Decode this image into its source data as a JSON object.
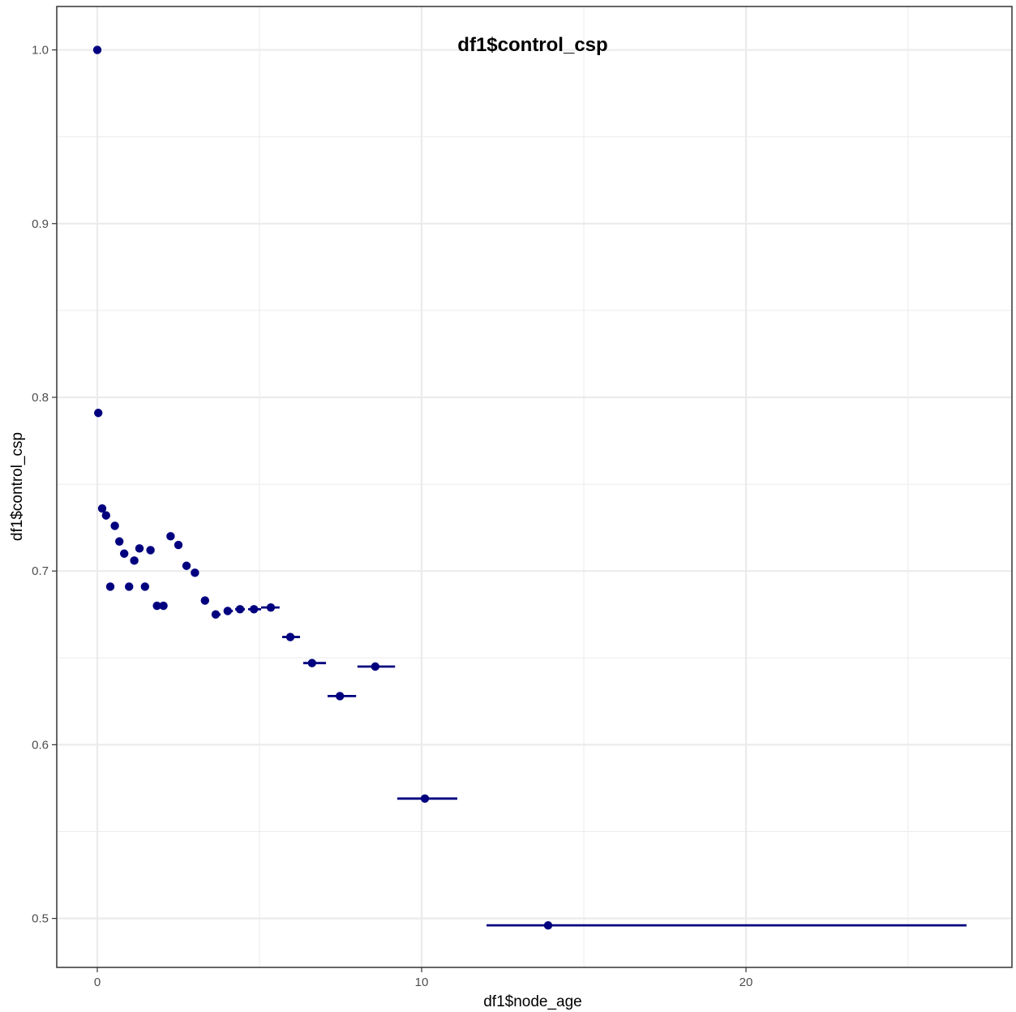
{
  "chart_data": {
    "type": "scatter",
    "title": "df1$control_csp",
    "xlabel": "df1$node_age",
    "ylabel": "df1$control_csp",
    "xlim": [
      -1.25,
      28.2
    ],
    "ylim": [
      0.4718,
      1.025
    ],
    "x_ticks": [
      0,
      10,
      20
    ],
    "x_tick_labels": [
      "0",
      "10",
      "20"
    ],
    "y_ticks": [
      0.5,
      0.6,
      0.7,
      0.8,
      0.9,
      1.0
    ],
    "y_tick_labels": [
      "0.5",
      "0.6",
      "0.7",
      "0.8",
      "0.9",
      "1.0"
    ],
    "grid": true,
    "error_bar_direction": "horizontal",
    "point_color": "#00007F",
    "grid_color": "#EBEBEB",
    "points": [
      {
        "x": 0.0,
        "y": 1.0,
        "xmin": 0.0,
        "xmax": 0.0
      },
      {
        "x": 0.03,
        "y": 0.791,
        "xmin": 0.03,
        "xmax": 0.03
      },
      {
        "x": 0.15,
        "y": 0.736,
        "xmin": 0.15,
        "xmax": 0.15
      },
      {
        "x": 0.27,
        "y": 0.732,
        "xmin": 0.27,
        "xmax": 0.27
      },
      {
        "x": 0.4,
        "y": 0.691,
        "xmin": 0.4,
        "xmax": 0.4
      },
      {
        "x": 0.54,
        "y": 0.726,
        "xmin": 0.54,
        "xmax": 0.54
      },
      {
        "x": 0.68,
        "y": 0.717,
        "xmin": 0.68,
        "xmax": 0.68
      },
      {
        "x": 0.83,
        "y": 0.71,
        "xmin": 0.83,
        "xmax": 0.83
      },
      {
        "x": 0.98,
        "y": 0.691,
        "xmin": 0.98,
        "xmax": 0.98
      },
      {
        "x": 1.14,
        "y": 0.706,
        "xmin": 1.14,
        "xmax": 1.14
      },
      {
        "x": 1.3,
        "y": 0.713,
        "xmin": 1.3,
        "xmax": 1.3
      },
      {
        "x": 1.47,
        "y": 0.691,
        "xmin": 1.47,
        "xmax": 1.47
      },
      {
        "x": 1.64,
        "y": 0.712,
        "xmin": 1.64,
        "xmax": 1.64
      },
      {
        "x": 1.84,
        "y": 0.68,
        "xmin": 1.84,
        "xmax": 1.84
      },
      {
        "x": 2.04,
        "y": 0.68,
        "xmin": 2.04,
        "xmax": 2.04
      },
      {
        "x": 2.26,
        "y": 0.72,
        "xmin": 2.26,
        "xmax": 2.26
      },
      {
        "x": 2.5,
        "y": 0.715,
        "xmin": 2.5,
        "xmax": 2.5
      },
      {
        "x": 2.75,
        "y": 0.703,
        "xmin": 2.75,
        "xmax": 2.75
      },
      {
        "x": 3.01,
        "y": 0.699,
        "xmin": 3.01,
        "xmax": 3.01
      },
      {
        "x": 3.32,
        "y": 0.683,
        "xmin": 3.25,
        "xmax": 3.42
      },
      {
        "x": 3.65,
        "y": 0.675,
        "xmin": 3.55,
        "xmax": 3.8
      },
      {
        "x": 4.02,
        "y": 0.677,
        "xmin": 3.9,
        "xmax": 4.18
      },
      {
        "x": 4.4,
        "y": 0.678,
        "xmin": 4.25,
        "xmax": 4.55
      },
      {
        "x": 4.83,
        "y": 0.678,
        "xmin": 4.65,
        "xmax": 5.05
      },
      {
        "x": 5.35,
        "y": 0.679,
        "xmin": 5.05,
        "xmax": 5.62
      },
      {
        "x": 5.95,
        "y": 0.662,
        "xmin": 5.7,
        "xmax": 6.25
      },
      {
        "x": 6.62,
        "y": 0.647,
        "xmin": 6.35,
        "xmax": 7.05
      },
      {
        "x": 7.48,
        "y": 0.628,
        "xmin": 7.1,
        "xmax": 7.98
      },
      {
        "x": 8.57,
        "y": 0.645,
        "xmin": 8.02,
        "xmax": 9.18
      },
      {
        "x": 10.1,
        "y": 0.569,
        "xmin": 9.25,
        "xmax": 11.1
      },
      {
        "x": 13.9,
        "y": 0.496,
        "xmin": 12.0,
        "xmax": 26.8
      }
    ]
  }
}
